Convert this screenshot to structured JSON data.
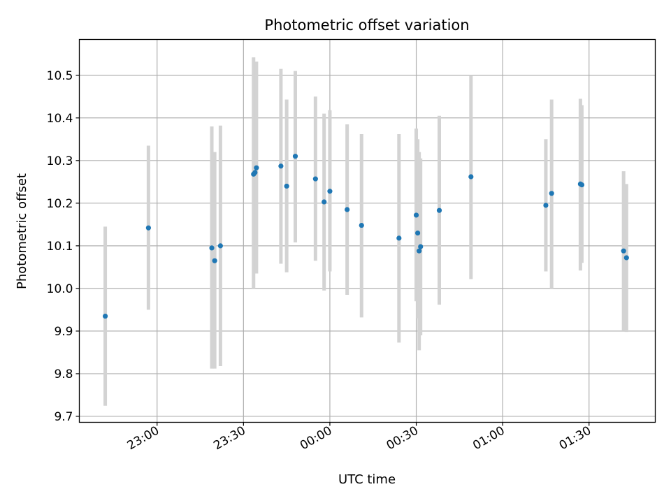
{
  "chart_data": {
    "type": "scatter",
    "title": "Photometric offset variation",
    "xlabel": "UTC time",
    "ylabel": "Photometric offset",
    "x_axis": "time (HH:MM, UTC), night of observation; ticks every 30 min",
    "xlim": [
      "22:33",
      "01:53"
    ],
    "ylim": [
      9.686,
      10.584
    ],
    "x_ticks": [
      "23:00",
      "23:30",
      "00:00",
      "00:30",
      "01:00",
      "01:30"
    ],
    "y_ticks": [
      "9.7",
      "9.8",
      "9.9",
      "10.0",
      "10.1",
      "10.2",
      "10.3",
      "10.4",
      "10.5"
    ],
    "grid": true,
    "legend": "none",
    "colors": {
      "marker": "#1f77b4",
      "errorbar": "#d3d3d3",
      "grid": "#b0b0b0"
    },
    "points": [
      {
        "x": "22:42",
        "y": 9.935,
        "err_low": 9.725,
        "err_high": 10.145
      },
      {
        "x": "22:57",
        "y": 10.142,
        "err_low": 9.95,
        "err_high": 10.335
      },
      {
        "x": "23:19",
        "y": 10.095,
        "err_low": 9.812,
        "err_high": 10.38
      },
      {
        "x": "23:20",
        "y": 10.065,
        "err_low": 9.812,
        "err_high": 10.32
      },
      {
        "x": "23:22",
        "y": 10.1,
        "err_low": 9.818,
        "err_high": 10.382
      },
      {
        "x": "23:33.5",
        "y": 10.268,
        "err_low": 10.0,
        "err_high": 10.542
      },
      {
        "x": "23:34",
        "y": 10.272,
        "err_low": 10.035,
        "err_high": 10.495
      },
      {
        "x": "23:34.5",
        "y": 10.283,
        "err_low": 10.035,
        "err_high": 10.532
      },
      {
        "x": "23:43",
        "y": 10.287,
        "err_low": 10.058,
        "err_high": 10.515
      },
      {
        "x": "23:45",
        "y": 10.24,
        "err_low": 10.038,
        "err_high": 10.443
      },
      {
        "x": "23:48",
        "y": 10.31,
        "err_low": 10.108,
        "err_high": 10.51
      },
      {
        "x": "23:55",
        "y": 10.257,
        "err_low": 10.065,
        "err_high": 10.45
      },
      {
        "x": "23:58",
        "y": 10.203,
        "err_low": 9.995,
        "err_high": 10.41
      },
      {
        "x": "00:00",
        "y": 10.228,
        "err_low": 10.04,
        "err_high": 10.418
      },
      {
        "x": "00:06",
        "y": 10.185,
        "err_low": 9.985,
        "err_high": 10.385
      },
      {
        "x": "00:11",
        "y": 10.148,
        "err_low": 9.932,
        "err_high": 10.362
      },
      {
        "x": "00:24",
        "y": 10.118,
        "err_low": 9.873,
        "err_high": 10.362
      },
      {
        "x": "00:30",
        "y": 10.172,
        "err_low": 9.97,
        "err_high": 10.375
      },
      {
        "x": "00:30.5",
        "y": 10.13,
        "err_low": 9.93,
        "err_high": 10.35
      },
      {
        "x": "00:31",
        "y": 10.088,
        "err_low": 9.855,
        "err_high": 10.32
      },
      {
        "x": "00:31.5",
        "y": 10.098,
        "err_low": 9.89,
        "err_high": 10.305
      },
      {
        "x": "00:38",
        "y": 10.183,
        "err_low": 9.962,
        "err_high": 10.405
      },
      {
        "x": "00:49",
        "y": 10.262,
        "err_low": 10.022,
        "err_high": 10.5
      },
      {
        "x": "01:15",
        "y": 10.195,
        "err_low": 10.04,
        "err_high": 10.35
      },
      {
        "x": "01:17",
        "y": 10.223,
        "err_low": 10.0,
        "err_high": 10.443
      },
      {
        "x": "01:27",
        "y": 10.245,
        "err_low": 10.042,
        "err_high": 10.445
      },
      {
        "x": "01:27.5",
        "y": 10.243,
        "err_low": 10.06,
        "err_high": 10.43
      },
      {
        "x": "01:42",
        "y": 10.088,
        "err_low": 9.9,
        "err_high": 10.275
      },
      {
        "x": "01:43",
        "y": 10.072,
        "err_low": 9.898,
        "err_high": 10.245
      }
    ]
  }
}
